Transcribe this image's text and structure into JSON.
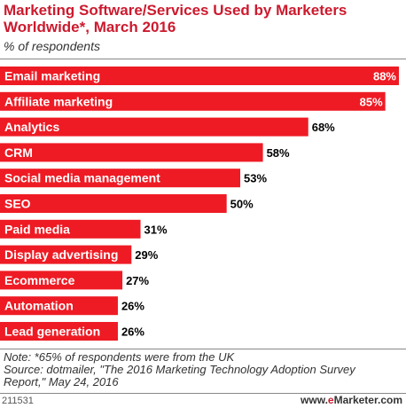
{
  "header": {
    "title": "Marketing Software/Services Used by Marketers Worldwide*, March 2016",
    "subtitle": "% of respondents"
  },
  "chart_data": {
    "type": "bar",
    "orientation": "horizontal",
    "title": "Marketing Software/Services Used by Marketers Worldwide*, March 2016",
    "subtitle": "% of respondents",
    "categories": [
      "Email marketing",
      "Affiliate marketing",
      "Analytics",
      "CRM",
      "Social media management",
      "SEO",
      "Paid media",
      "Display advertising",
      "Ecommerce",
      "Automation",
      "Lead generation"
    ],
    "values": [
      88,
      85,
      68,
      58,
      53,
      50,
      31,
      29,
      27,
      26,
      26
    ],
    "value_labels": [
      "88%",
      "85%",
      "68%",
      "58%",
      "53%",
      "50%",
      "31%",
      "29%",
      "27%",
      "26%",
      "26%"
    ],
    "unit": "%",
    "xlim": [
      0,
      100
    ],
    "grid": false,
    "legend": "none",
    "bar_color": "#ee1b24"
  },
  "notes": {
    "note": "Note: *65% of respondents were from the UK",
    "source": "Source: dotmailer, \"The 2016 Marketing Technology Adoption Survey Report,\" May 24, 2016"
  },
  "footer": {
    "chart_id": "211531",
    "brand_prefix": "www.",
    "brand_e": "e",
    "brand_name": "Marketer",
    "brand_suffix": ".com"
  },
  "colors": {
    "accent": "#cc1a2e",
    "bar": "#ee1b24"
  }
}
